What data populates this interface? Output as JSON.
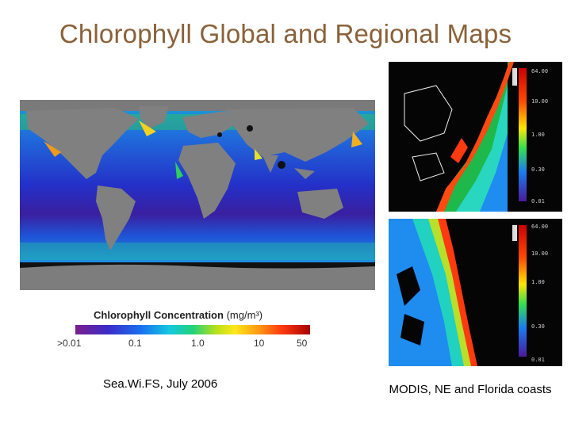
{
  "slide": {
    "title": "Chlorophyll Global and Regional Maps"
  },
  "global_map": {
    "colorbar": {
      "label": "Chlorophyll Concentration",
      "unit": "(mg/m³)",
      "ticks": [
        ">0.01",
        "0.1",
        "1.0",
        "10",
        "50"
      ]
    },
    "caption": "Sea.Wi.FS, July 2006"
  },
  "regional_maps": {
    "ne_colorbar_ticks": [
      "64.00",
      "10.00",
      "1.00",
      "0.30",
      "0.01"
    ],
    "fl_colorbar_ticks": [
      "64.00",
      "10.00",
      "1.00",
      "0.30",
      "0.01"
    ],
    "caption": "MODIS, NE and Florida coasts"
  }
}
